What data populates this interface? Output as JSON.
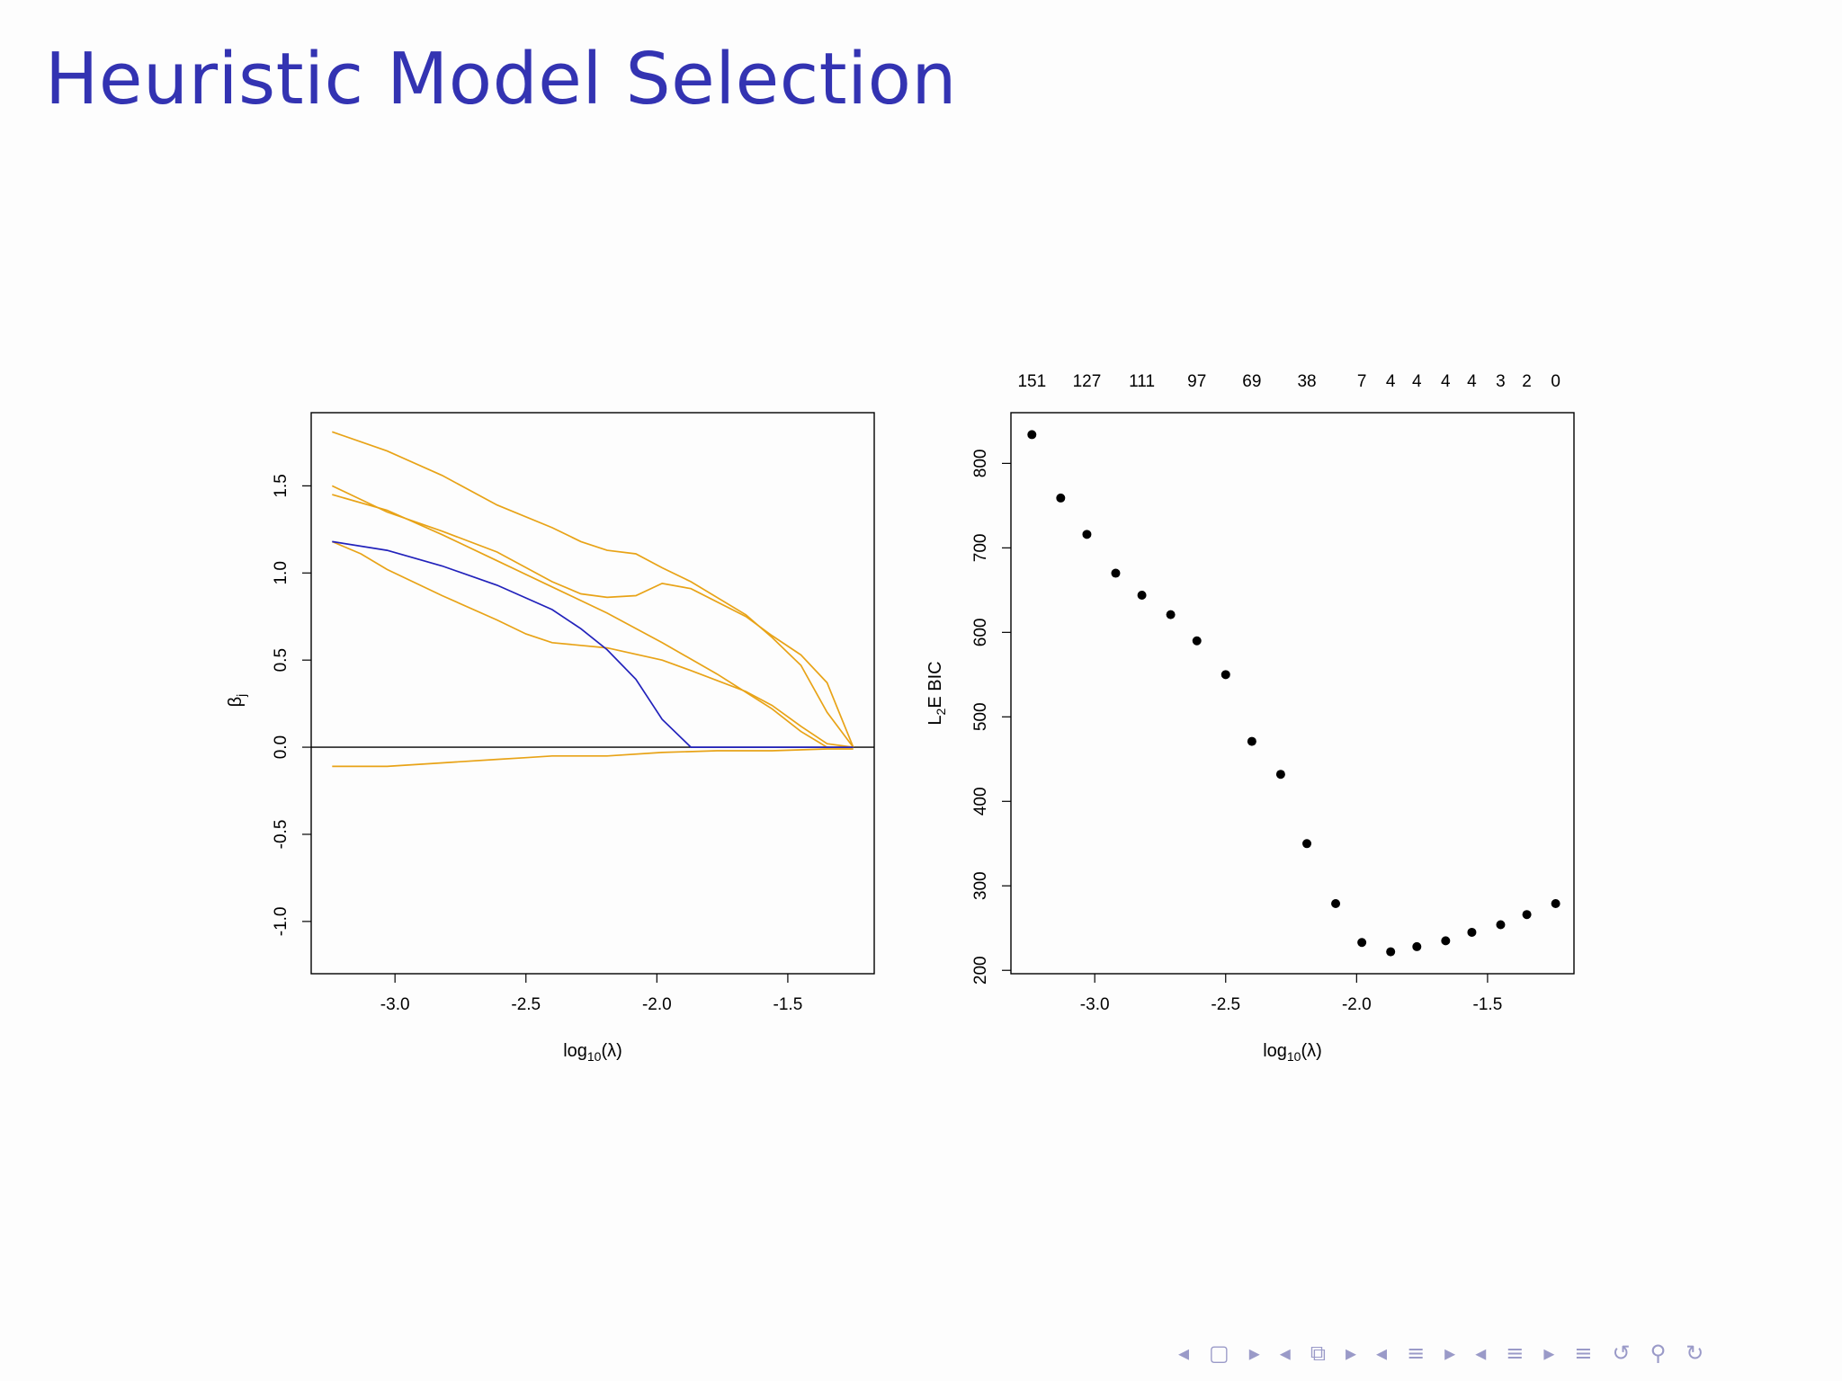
{
  "slide": {
    "title": "Heuristic Model Selection"
  },
  "nav": {
    "icons": [
      "prev-arrow-icon",
      "frame-icon",
      "next-arrow-icon",
      "prev-arrow-icon",
      "subsection-icon",
      "next-arrow-icon",
      "prev-arrow-icon",
      "section-icon",
      "next-arrow-icon",
      "prev-arrow-icon",
      "doc-icon",
      "next-arrow-icon",
      "menu-icon",
      "undo-icon",
      "search-icon",
      "redo-icon"
    ],
    "glyphs": [
      "◂",
      "▢",
      "▸",
      "◂",
      "⧉",
      "▸",
      "◂",
      "≡",
      "▸",
      "◂",
      "≡",
      "▸",
      "≡",
      "↺",
      "⚲",
      "↻"
    ]
  },
  "chart_data": [
    {
      "type": "line",
      "title": "",
      "xlabel": "log10(λ)",
      "ylabel": "βj",
      "xlim": [
        -3.32,
        -1.17
      ],
      "ylim": [
        -1.3,
        1.92
      ],
      "xticks": [
        -3.0,
        -2.5,
        -2.0,
        -1.5
      ],
      "xtick_labels": [
        "-3.0",
        "-2.5",
        "-2.0",
        "-1.5"
      ],
      "yticks": [
        -1.0,
        -0.5,
        0.0,
        0.5,
        1.0,
        1.5
      ],
      "ytick_labels": [
        "-1.0",
        "-0.5",
        "0.0",
        "0.5",
        "1.0",
        "1.5"
      ],
      "hline": 0.0,
      "grid": false,
      "legend": "none",
      "series": [
        {
          "color": "#e8a317",
          "x": [
            -3.24,
            -3.03,
            -2.82,
            -2.61,
            -2.4,
            -2.29,
            -2.19,
            -2.08,
            -1.98,
            -1.87,
            -1.66,
            -1.56,
            -1.45,
            -1.35,
            -1.25
          ],
          "y": [
            1.81,
            1.7,
            1.56,
            1.39,
            1.26,
            1.18,
            1.13,
            1.11,
            1.03,
            0.95,
            0.76,
            0.63,
            0.47,
            0.2,
            0.0
          ]
        },
        {
          "color": "#e8a317",
          "x": [
            -3.24,
            -3.03,
            -2.82,
            -2.61,
            -2.4,
            -2.29,
            -2.19,
            -2.08,
            -1.98,
            -1.87,
            -1.66,
            -1.56,
            -1.45,
            -1.35,
            -1.25
          ],
          "y": [
            1.5,
            1.35,
            1.24,
            1.12,
            0.95,
            0.88,
            0.86,
            0.87,
            0.94,
            0.91,
            0.75,
            0.64,
            0.53,
            0.37,
            0.0
          ]
        },
        {
          "color": "#e8a317",
          "x": [
            -3.24,
            -3.03,
            -2.82,
            -2.61,
            -2.4,
            -2.19,
            -1.98,
            -1.77,
            -1.56,
            -1.45,
            -1.35,
            -1.25
          ],
          "y": [
            1.45,
            1.36,
            1.22,
            1.07,
            0.92,
            0.77,
            0.6,
            0.42,
            0.22,
            0.09,
            0.0,
            0.0
          ]
        },
        {
          "color": "#e8a317",
          "x": [
            -3.24,
            -3.13,
            -3.03,
            -2.82,
            -2.61,
            -2.5,
            -2.4,
            -2.19,
            -1.98,
            -1.87,
            -1.66,
            -1.56,
            -1.45,
            -1.35,
            -1.25
          ],
          "y": [
            1.18,
            1.11,
            1.02,
            0.87,
            0.73,
            0.65,
            0.6,
            0.57,
            0.5,
            0.44,
            0.32,
            0.24,
            0.12,
            0.02,
            0.0
          ]
        },
        {
          "color": "#e8a317",
          "x": [
            -3.24,
            -3.03,
            -2.82,
            -2.61,
            -2.5,
            -2.4,
            -2.29,
            -2.19,
            -1.98,
            -1.77,
            -1.56,
            -1.35,
            -1.25
          ],
          "y": [
            -0.11,
            -0.11,
            -0.09,
            -0.07,
            -0.06,
            -0.05,
            -0.05,
            -0.05,
            -0.03,
            -0.02,
            -0.02,
            -0.01,
            -0.01
          ]
        },
        {
          "color": "#2222bb",
          "x": [
            -3.24,
            -3.03,
            -2.82,
            -2.61,
            -2.4,
            -2.29,
            -2.19,
            -2.08,
            -1.98,
            -1.87,
            -1.66,
            -1.45,
            -1.25
          ],
          "y": [
            1.18,
            1.13,
            1.04,
            0.93,
            0.79,
            0.68,
            0.56,
            0.39,
            0.16,
            0.0,
            0.0,
            0.0,
            0.0
          ]
        }
      ]
    },
    {
      "type": "scatter",
      "title": "",
      "xlabel": "log10(λ)",
      "ylabel": "L2E BIC",
      "xlim": [
        -3.32,
        -1.17
      ],
      "ylim": [
        196,
        860
      ],
      "xticks": [
        -3.0,
        -2.5,
        -2.0,
        -1.5
      ],
      "xtick_labels": [
        "-3.0",
        "-2.5",
        "-2.0",
        "-1.5"
      ],
      "yticks": [
        200,
        300,
        400,
        500,
        600,
        700,
        800
      ],
      "ytick_labels": [
        "200",
        "300",
        "400",
        "500",
        "600",
        "700",
        "800"
      ],
      "grid": false,
      "legend": "none",
      "x": [
        -3.24,
        -3.13,
        -3.03,
        -2.92,
        -2.82,
        -2.71,
        -2.61,
        -2.5,
        -2.4,
        -2.29,
        -2.19,
        -2.08,
        -1.98,
        -1.87,
        -1.77,
        -1.66,
        -1.56,
        -1.45,
        -1.35,
        -1.24
      ],
      "y": [
        834,
        759,
        716,
        670,
        644,
        621,
        590,
        550,
        471,
        432,
        350,
        279,
        233,
        222,
        228,
        235,
        245,
        254,
        266,
        279
      ],
      "top_axis": {
        "x": [
          -3.24,
          -3.03,
          -2.82,
          -2.61,
          -2.4,
          -2.19,
          -1.98,
          -1.87,
          -1.77,
          -1.66,
          -1.56,
          -1.45,
          -1.35,
          -1.24
        ],
        "labels": [
          "151",
          "127",
          "111",
          "97",
          "69",
          "38",
          "7",
          "4",
          "4",
          "4",
          "4",
          "3",
          "2",
          "0"
        ]
      }
    }
  ]
}
